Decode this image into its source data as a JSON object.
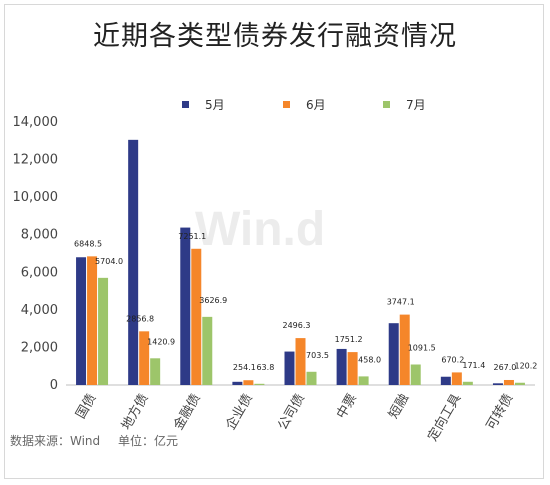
{
  "chart_data": {
    "type": "bar",
    "title": "近期各类型债券发行融资情况",
    "categories": [
      "国债",
      "地方债",
      "金融债",
      "企业债",
      "公司债",
      "中票",
      "短融",
      "定向工具",
      "可转债"
    ],
    "series": [
      {
        "name": "5月",
        "color": "#2e3a87",
        "values": [
          6800,
          13050,
          8380,
          170,
          1780,
          1920,
          3290,
          440,
          90
        ],
        "labels": [
          "",
          "",
          "",
          "",
          "",
          "",
          "",
          "",
          ""
        ]
      },
      {
        "name": "6月",
        "color": "#f5862a",
        "values": [
          6848.5,
          2856.8,
          7251.1,
          254.1,
          2496.3,
          1751.2,
          3747.1,
          670.2,
          267.0
        ],
        "labels": [
          "6848.5",
          "2856.8",
          "7251.1",
          "254.1",
          "2496.3",
          "1751.2",
          "3747.1",
          "670.2",
          "267.0"
        ]
      },
      {
        "name": "7月",
        "color": "#9dc56a",
        "values": [
          5704.0,
          1420.9,
          3626.9,
          63.8,
          703.5,
          458.0,
          1091.5,
          171.4,
          120.2
        ],
        "labels": [
          "5704.0",
          "1420.9",
          "3626.9",
          "63.8",
          "703.5",
          "458.0",
          "1091.5",
          "171.4",
          "120.2"
        ]
      }
    ],
    "ylim": [
      0,
      14000
    ],
    "yticks": [
      0,
      2000,
      4000,
      6000,
      8000,
      10000,
      12000,
      14000
    ],
    "ytick_labels": [
      "0",
      "2,000",
      "4,000",
      "6,000",
      "8,000",
      "10,000",
      "12,000",
      "14,000"
    ],
    "grid": false,
    "legend_position": "top"
  },
  "watermark": "Win.d",
  "footer": {
    "source": "数据来源：Wind",
    "unit": "单位：亿元"
  }
}
